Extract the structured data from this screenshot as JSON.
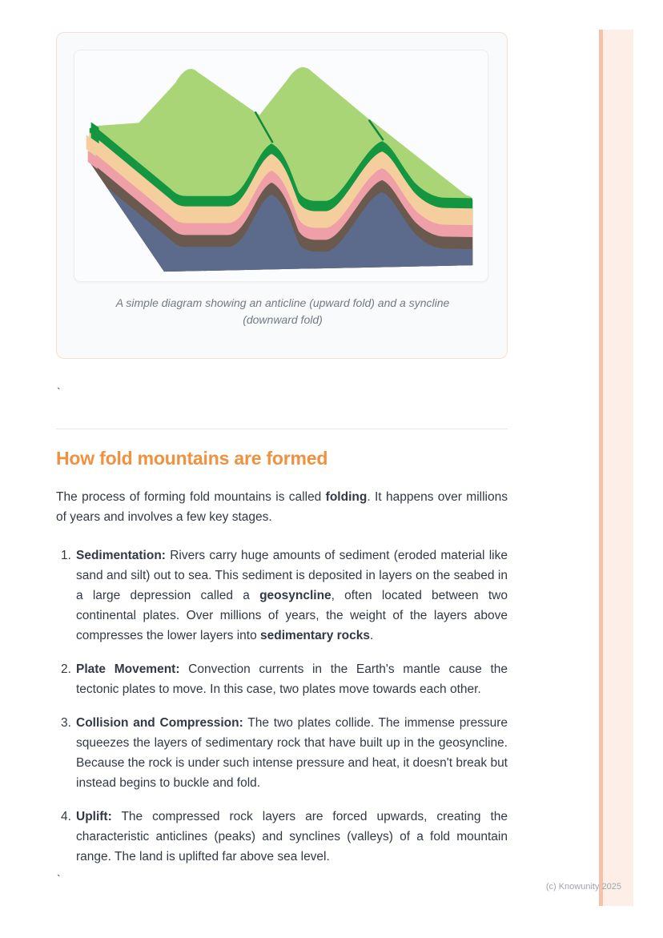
{
  "page": {
    "backtick_top": "`",
    "backtick_bottom": "`",
    "footer": "(c) Knowunity 2025",
    "stripe_colors": {
      "edge": "#f2c3a9",
      "fill": "#fdefe7"
    }
  },
  "figure": {
    "caption": "A simple diagram showing an anticline (upward fold) and a syncline (downward fold)",
    "colors": {
      "surface_green": "#a9d577",
      "band_green": "#149540",
      "band_peach": "#f4cf9d",
      "band_pink": "#ee9fa8",
      "band_brown": "#6a594e",
      "band_slate": "#5c6a8b",
      "crease_green": "#0e8a39"
    }
  },
  "section": {
    "heading": "How fold mountains are formed",
    "heading_color": "#ef913f",
    "intro": [
      {
        "t": "The process of forming fold mountains is called "
      },
      {
        "t": "folding",
        "b": true
      },
      {
        "t": ". It happens over millions of years and involves a few key stages."
      }
    ],
    "list": [
      {
        "number": "1.",
        "segments": [
          {
            "t": "Sedimentation:",
            "b": true
          },
          {
            "t": " Rivers carry huge amounts of sediment (eroded material like sand and silt) out to sea. This sediment is deposited in layers on the seabed in a large depression called a "
          },
          {
            "t": "geosyncline",
            "b": true
          },
          {
            "t": ", often located between two continental plates. Over millions of years, the weight of the layers above compresses the lower layers into "
          },
          {
            "t": "sedimentary rocks",
            "b": true
          },
          {
            "t": "."
          }
        ]
      },
      {
        "number": "2.",
        "segments": [
          {
            "t": "Plate Movement:",
            "b": true
          },
          {
            "t": " Convection currents in the Earth's mantle cause the tectonic plates to move. In this case, two plates move towards each other."
          }
        ]
      },
      {
        "number": "3.",
        "segments": [
          {
            "t": "Collision and Compression:",
            "b": true
          },
          {
            "t": " The two plates collide. The immense pressure squeezes the layers of sedimentary rock that have built up in the geosyncline. Because the rock is under such intense pressure and heat, it doesn't break but instead begins to buckle and fold."
          }
        ]
      },
      {
        "number": "4.",
        "segments": [
          {
            "t": "Uplift:",
            "b": true
          },
          {
            "t": " The compressed rock layers are forced upwards, creating the characteristic anticlines (peaks) and synclines (valleys) of a fold mountain range. The land is uplifted far above sea level."
          }
        ]
      }
    ]
  }
}
